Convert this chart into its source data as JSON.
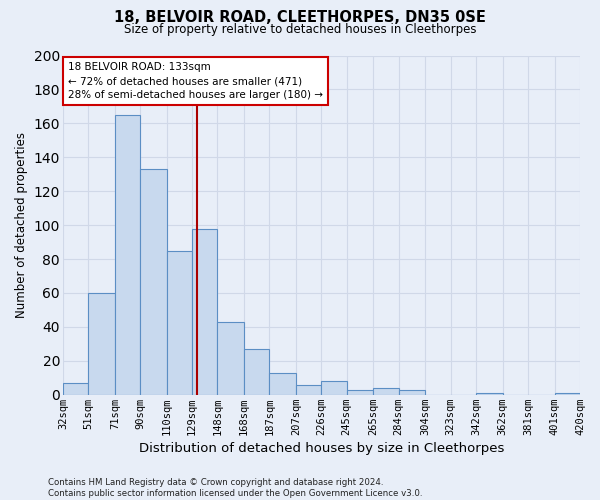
{
  "title": "18, BELVOIR ROAD, CLEETHORPES, DN35 0SE",
  "subtitle": "Size of property relative to detached houses in Cleethorpes",
  "xlabel": "Distribution of detached houses by size in Cleethorpes",
  "ylabel": "Number of detached properties",
  "bin_labels": [
    "32sqm",
    "51sqm",
    "71sqm",
    "90sqm",
    "110sqm",
    "129sqm",
    "148sqm",
    "168sqm",
    "187sqm",
    "207sqm",
    "226sqm",
    "245sqm",
    "265sqm",
    "284sqm",
    "304sqm",
    "323sqm",
    "342sqm",
    "362sqm",
    "381sqm",
    "401sqm",
    "420sqm"
  ],
  "bin_edges": [
    32,
    51,
    71,
    90,
    110,
    129,
    148,
    168,
    187,
    207,
    226,
    245,
    265,
    284,
    304,
    323,
    342,
    362,
    381,
    401,
    420
  ],
  "bar_values": [
    7,
    60,
    165,
    133,
    85,
    98,
    43,
    27,
    13,
    6,
    8,
    3,
    4,
    3,
    0,
    0,
    1,
    0,
    0,
    1
  ],
  "bar_color": "#c8d9ee",
  "bar_edge_color": "#5b8ec4",
  "vline_x": 133,
  "vline_color": "#aa0000",
  "annotation_line1": "18 BELVOIR ROAD: 133sqm",
  "annotation_line2": "← 72% of detached houses are smaller (471)",
  "annotation_line3": "28% of semi-detached houses are larger (180) →",
  "annotation_box_edge_color": "#cc0000",
  "annotation_box_fill": "#ffffff",
  "ylim": [
    0,
    200
  ],
  "yticks": [
    0,
    20,
    40,
    60,
    80,
    100,
    120,
    140,
    160,
    180,
    200
  ],
  "footer_text": "Contains HM Land Registry data © Crown copyright and database right 2024.\nContains public sector information licensed under the Open Government Licence v3.0.",
  "background_color": "#e8eef8",
  "grid_color": "#d0d8e8",
  "fig_width": 6.0,
  "fig_height": 5.0
}
